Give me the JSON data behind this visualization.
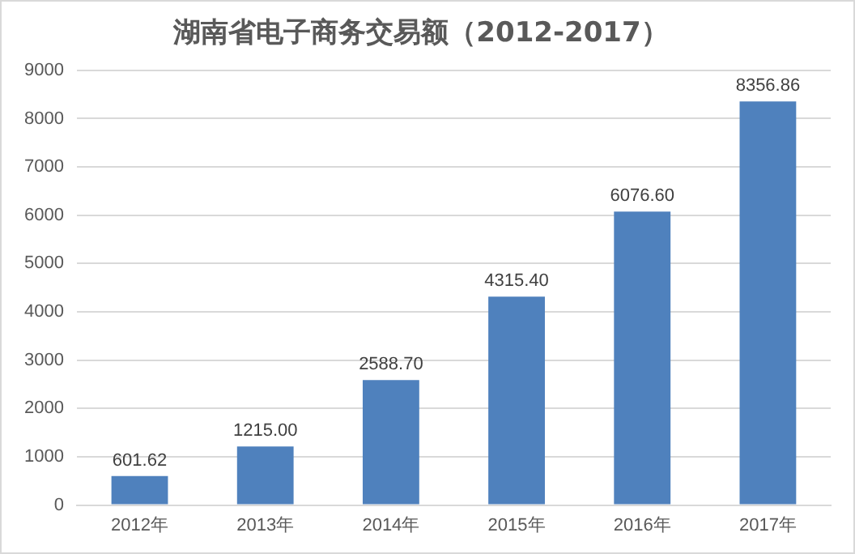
{
  "chart_data": {
    "type": "bar",
    "title": "湖南省电子商务交易额（2012-2017）",
    "categories": [
      "2012年",
      "2013年",
      "2014年",
      "2015年",
      "2016年",
      "2017年"
    ],
    "values": [
      601.62,
      1215.0,
      2588.7,
      4315.4,
      6076.6,
      8356.86
    ],
    "value_labels": [
      "601.62",
      "1215.00",
      "2588.70",
      "4315.40",
      "6076.60",
      "8356.86"
    ],
    "color": "#4f81bd",
    "ylim": [
      0,
      9000
    ],
    "yticks": [
      0,
      1000,
      2000,
      3000,
      4000,
      5000,
      6000,
      7000,
      8000,
      9000
    ],
    "grid": "y",
    "legend": false
  }
}
